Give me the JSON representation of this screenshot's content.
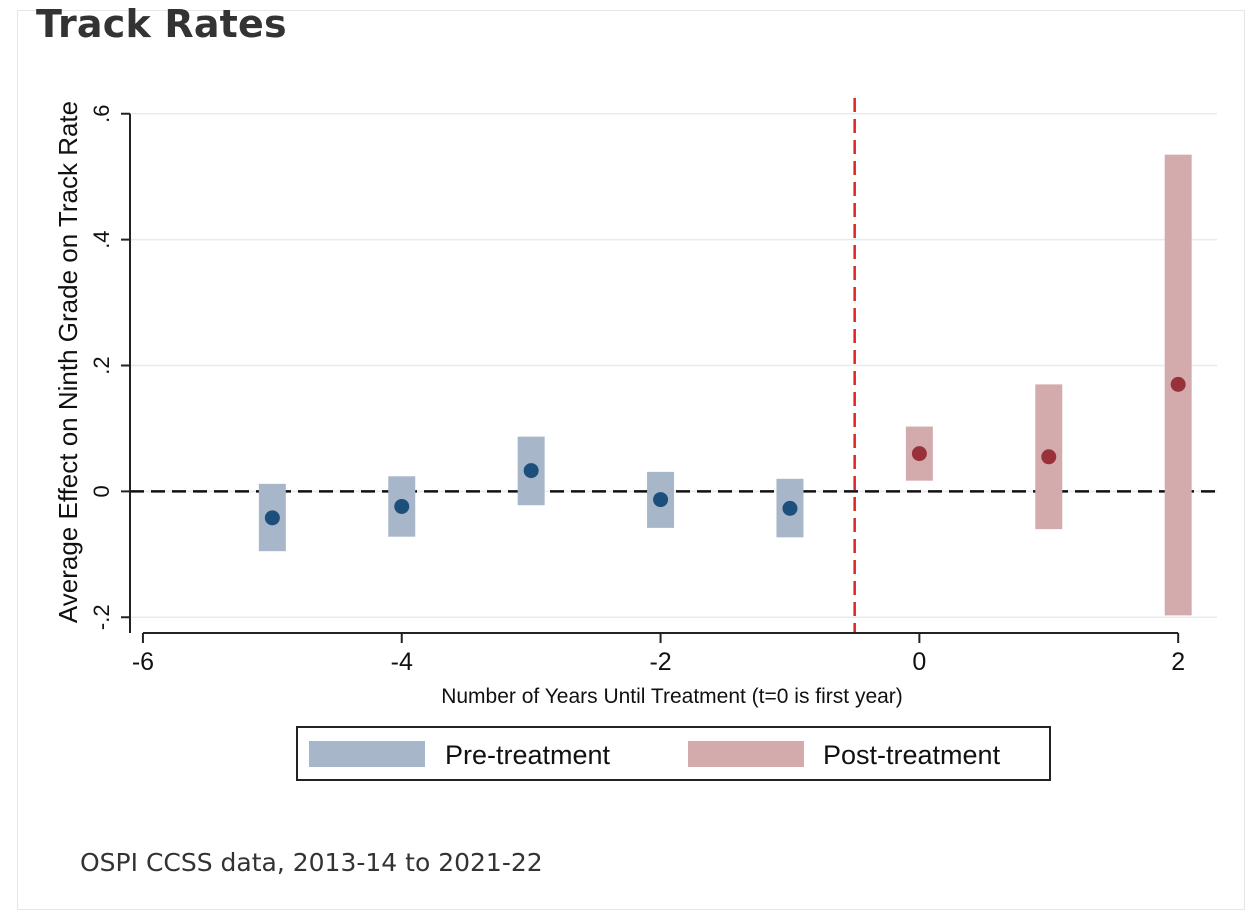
{
  "page": {
    "title": "Track Rates",
    "source_note": "OSPI CCSS data, 2013-14 to 2021-22"
  },
  "chart_data": {
    "type": "scatter",
    "title": "",
    "xlabel": "Number of Years Until Treatment (t=0 is first year)",
    "ylabel": "Average Effect on Ninth Grade on Track Rate",
    "xlim": [
      -6.1,
      2.3
    ],
    "ylim": [
      -0.225,
      0.625
    ],
    "x_ticks": [
      -6,
      -4,
      -2,
      0,
      2
    ],
    "x_tick_labels": [
      "-6",
      "-4",
      "-2",
      "0",
      "2"
    ],
    "y_ticks": [
      -0.2,
      0,
      0.2,
      0.4,
      0.6
    ],
    "y_tick_labels": [
      "-.2",
      "0",
      ".2",
      ".4",
      ".6"
    ],
    "grid": true,
    "zero_line": 0,
    "treatment_line_x": -0.5,
    "legend": "bottom",
    "series": [
      {
        "name": "Pre-treatment",
        "color": "#1d4f7c",
        "band_color": "#a7b7c9",
        "points": [
          {
            "x": -5,
            "y": -0.042,
            "lo": -0.095,
            "hi": 0.012
          },
          {
            "x": -4,
            "y": -0.024,
            "lo": -0.072,
            "hi": 0.024
          },
          {
            "x": -3,
            "y": 0.033,
            "lo": -0.022,
            "hi": 0.087
          },
          {
            "x": -2,
            "y": -0.013,
            "lo": -0.058,
            "hi": 0.031
          },
          {
            "x": -1,
            "y": -0.027,
            "lo": -0.073,
            "hi": 0.02
          }
        ]
      },
      {
        "name": "Post-treatment",
        "color": "#99313b",
        "band_color": "#d4abad",
        "points": [
          {
            "x": 0,
            "y": 0.06,
            "lo": 0.017,
            "hi": 0.103
          },
          {
            "x": 1,
            "y": 0.055,
            "lo": -0.06,
            "hi": 0.17
          },
          {
            "x": 2,
            "y": 0.17,
            "lo": -0.197,
            "hi": 0.535
          }
        ]
      }
    ]
  }
}
